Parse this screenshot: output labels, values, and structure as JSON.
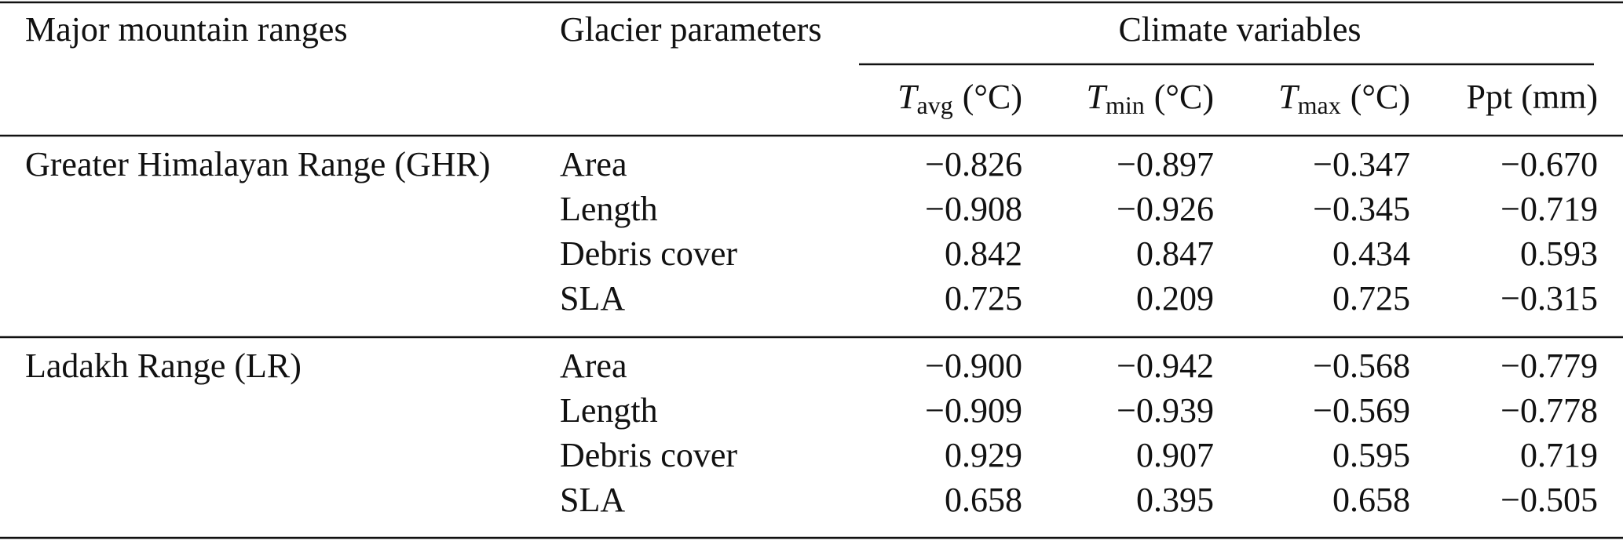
{
  "header": {
    "col1": "Major mountain ranges",
    "col2": "Glacier parameters",
    "group": "Climate variables",
    "vars": [
      {
        "symbol": "T",
        "sub": "avg",
        "unit": "(°C)"
      },
      {
        "symbol": "T",
        "sub": "min",
        "unit": "(°C)"
      },
      {
        "symbol": "T",
        "sub": "max",
        "unit": "(°C)"
      },
      {
        "label": "Ppt (mm)"
      }
    ]
  },
  "groups": [
    {
      "range": "Greater Himalayan Range (GHR)",
      "rows": [
        {
          "parameter": "Area",
          "values": [
            "−0.826",
            "−0.897",
            "−0.347",
            "−0.670"
          ]
        },
        {
          "parameter": "Length",
          "values": [
            "−0.908",
            "−0.926",
            "−0.345",
            "−0.719"
          ]
        },
        {
          "parameter": "Debris cover",
          "values": [
            "0.842",
            "0.847",
            "0.434",
            "0.593"
          ]
        },
        {
          "parameter": "SLA",
          "values": [
            "0.725",
            "0.209",
            "0.725",
            "−0.315"
          ]
        }
      ]
    },
    {
      "range": "Ladakh Range (LR)",
      "rows": [
        {
          "parameter": "Area",
          "values": [
            "−0.900",
            "−0.942",
            "−0.568",
            "−0.779"
          ]
        },
        {
          "parameter": "Length",
          "values": [
            "−0.909",
            "−0.939",
            "−0.569",
            "−0.778"
          ]
        },
        {
          "parameter": "Debris cover",
          "values": [
            "0.929",
            "0.907",
            "0.595",
            "0.719"
          ]
        },
        {
          "parameter": "SLA",
          "values": [
            "0.658",
            "0.395",
            "0.658",
            "−0.505"
          ]
        }
      ]
    }
  ]
}
